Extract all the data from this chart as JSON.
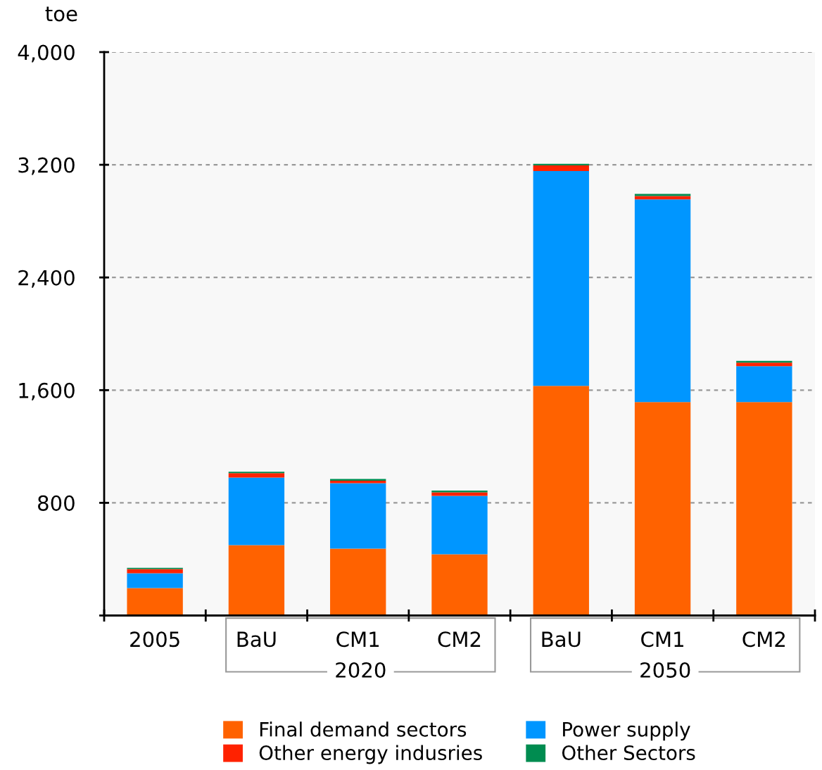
{
  "chart_data": {
    "type": "bar",
    "stacked": true,
    "categories": [
      "2005",
      "BaU",
      "CM1",
      "CM2",
      "BaU",
      "CM1",
      "CM2"
    ],
    "series": [
      {
        "name": "Final demand sectors",
        "color": "#ff6200",
        "values": [
          195,
          500,
          475,
          435,
          1630,
          1515,
          1515
        ]
      },
      {
        "name": "Power supply",
        "color": "#0096ff",
        "values": [
          105,
          480,
          465,
          415,
          1525,
          1440,
          255
        ]
      },
      {
        "name": "Other energy indusries",
        "color": "#ff2200",
        "values": [
          30,
          30,
          17,
          25,
          40,
          23,
          25
        ]
      },
      {
        "name": "Other Sectors",
        "color": "#008c50",
        "values": [
          8,
          10,
          13,
          12,
          12,
          15,
          13
        ]
      }
    ],
    "ylabel": "toe",
    "ylim": [
      0,
      4000
    ],
    "yticks": [
      {
        "value": 0,
        "label": null
      },
      800,
      {
        "value": 1600,
        "label": "1,600"
      },
      {
        "value": 2400,
        "label": "2,400"
      },
      {
        "value": 3200,
        "label": "3,200"
      },
      {
        "value": 4000,
        "label": "4,000"
      }
    ],
    "annotations": [
      "2020",
      "2050"
    ],
    "grid": "y",
    "legend": "bottom"
  }
}
